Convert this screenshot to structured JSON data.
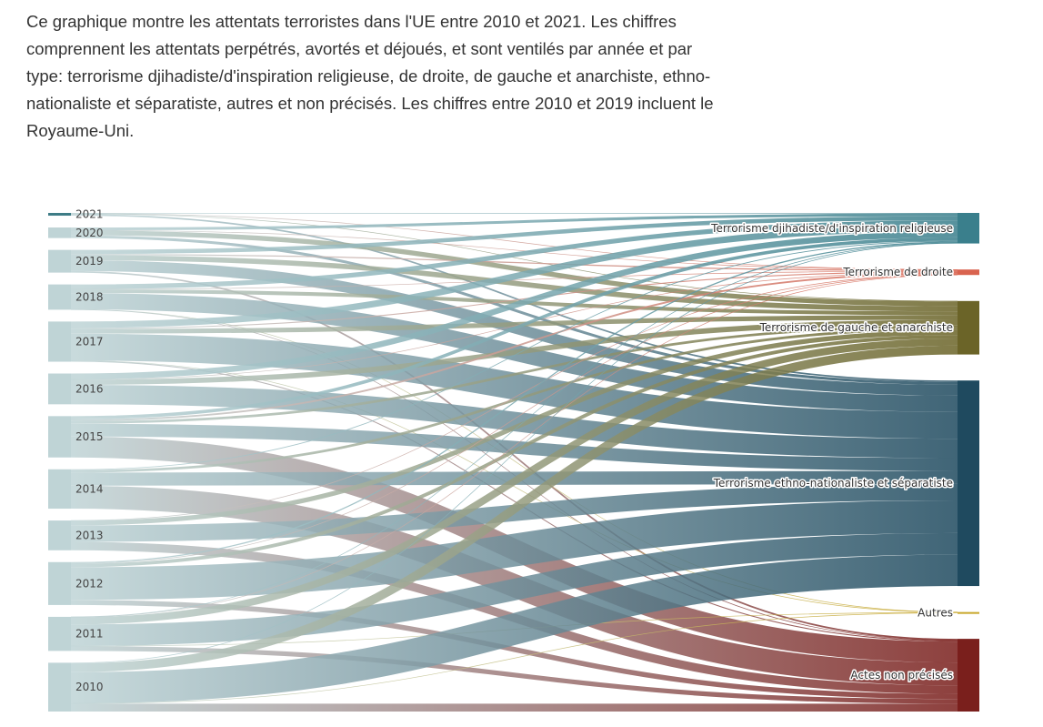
{
  "description": "Ce graphique montre les attentats terroristes dans l'UE entre 2010 et 2021. Les chiffres comprennent les attentats perpétrés, avortés et déjoués, et sont ventilés par année et par type: terrorisme djihadiste/d'inspiration religieuse, de droite, de gauche et anarchiste, ethno-nationaliste et séparatiste, autres et non précisés. Les chiffres entre 2010 et 2019 incluent le Royaume-Uni.",
  "chart_data": {
    "type": "sankey",
    "sources": [
      "2021",
      "2020",
      "2019",
      "2018",
      "2017",
      "2016",
      "2015",
      "2014",
      "2013",
      "2012",
      "2011",
      "2010"
    ],
    "targets": [
      {
        "name": "Terrorisme djihadiste/d'inspiration religieuse",
        "color": "#3a7f8c"
      },
      {
        "name": "Terrorisme de droite",
        "color": "#d9634f"
      },
      {
        "name": "Terrorisme de gauche et anarchiste",
        "color": "#6b6428"
      },
      {
        "name": "Terrorisme ethno-nationaliste et séparatiste",
        "color": "#1f4a5f"
      },
      {
        "name": "Autres",
        "color": "#c9a82c"
      },
      {
        "name": "Actes non précisés",
        "color": "#7a1f1c"
      }
    ],
    "flows": [
      [
        3,
        1,
        2,
        8,
        0,
        0
      ],
      [
        14,
        1,
        25,
        14,
        0,
        0
      ],
      [
        21,
        6,
        26,
        55,
        0,
        8
      ],
      [
        24,
        1,
        19,
        83,
        1,
        1
      ],
      [
        33,
        5,
        24,
        137,
        1,
        5
      ],
      [
        30,
        1,
        27,
        99,
        0,
        0
      ],
      [
        17,
        9,
        13,
        65,
        0,
        107
      ],
      [
        4,
        0,
        13,
        67,
        0,
        117
      ],
      [
        0,
        1,
        24,
        84,
        0,
        43
      ],
      [
        6,
        2,
        18,
        167,
        0,
        26
      ],
      [
        1,
        1,
        37,
        110,
        1,
        24
      ],
      [
        3,
        0,
        45,
        160,
        1,
        40
      ]
    ]
  }
}
